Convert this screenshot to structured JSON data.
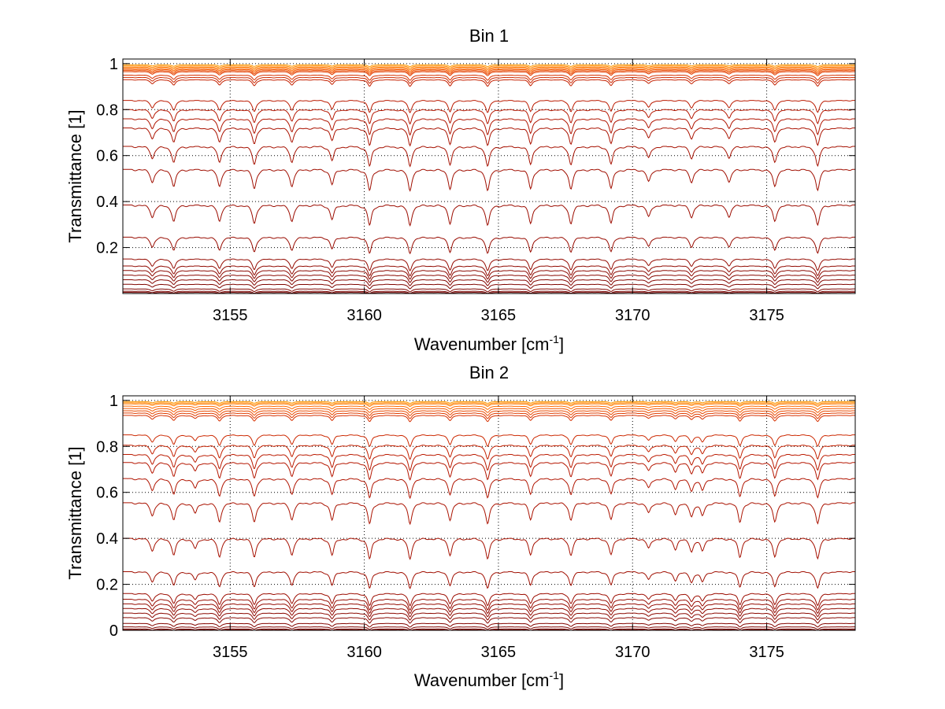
{
  "chart_data": [
    {
      "type": "line",
      "title": "Bin 1",
      "xlabel_main": "Wavenumber [cm",
      "xlabel_sup": "-1",
      "xlabel_end": "]",
      "ylabel": "Transmittance [1]",
      "xlim": [
        3151.0,
        3178.3
      ],
      "ylim": [
        0,
        1.02
      ],
      "xticks": [
        3155,
        3160,
        3165,
        3170,
        3175
      ],
      "xtick_labels": [
        "3155",
        "3160",
        "3165",
        "3170",
        "3175"
      ],
      "yticks": [
        0.2,
        0.4,
        0.6,
        0.8,
        1
      ],
      "ytick_labels": [
        "0.2",
        "0.4",
        "0.6",
        "0.8",
        "1"
      ],
      "grid": true,
      "line_centers": [
        3152.1,
        3152.9,
        3154.6,
        3155.9,
        3157.3,
        3158.8,
        3160.2,
        3161.7,
        3163.2,
        3164.6,
        3166.2,
        3167.7,
        3169.2,
        3170.6,
        3172.2,
        3173.6,
        3175.3,
        3176.9
      ],
      "line_depths": [
        0.6,
        0.8,
        0.8,
        0.9,
        0.8,
        0.7,
        1.0,
        1.0,
        0.9,
        1.0,
        0.9,
        0.9,
        0.9,
        0.6,
        0.6,
        0.6,
        0.8,
        1.0
      ],
      "series_baselines": [
        0.995,
        0.99,
        0.985,
        0.98,
        0.975,
        0.97,
        0.965,
        0.95,
        0.94,
        0.93,
        0.84,
        0.8,
        0.76,
        0.72,
        0.64,
        0.54,
        0.385,
        0.245,
        0.15,
        0.12,
        0.1,
        0.08,
        0.06,
        0.04,
        0.02,
        0.01,
        0.005
      ],
      "series_colors": [
        "#ff9900",
        "#ff8800",
        "#ff7a00",
        "#ff6a00",
        "#f55a00",
        "#ea4a00",
        "#e03c00",
        "#d63000",
        "#cc2800",
        "#c42000",
        "#bb1a00",
        "#b51600",
        "#b01400",
        "#aa1200",
        "#a51000",
        "#a00e00",
        "#9c0c00",
        "#980b00",
        "#940a00",
        "#900900",
        "#8c0800",
        "#880700",
        "#840600",
        "#800500",
        "#7c0400",
        "#780300",
        "#740200"
      ]
    },
    {
      "type": "line",
      "title": "Bin 2",
      "xlabel_main": "Wavenumber [cm",
      "xlabel_sup": "-1",
      "xlabel_end": "]",
      "ylabel": "Transmittance [1]",
      "xlim": [
        3151.0,
        3178.3
      ],
      "ylim": [
        0,
        1.02
      ],
      "xticks": [
        3155,
        3160,
        3165,
        3170,
        3175
      ],
      "xtick_labels": [
        "3155",
        "3160",
        "3165",
        "3170",
        "3175"
      ],
      "yticks": [
        0,
        0.2,
        0.4,
        0.6,
        0.8,
        1
      ],
      "ytick_labels": [
        "0",
        "0.2",
        "0.4",
        "0.6",
        "0.8",
        "1"
      ],
      "grid": true,
      "line_centers": [
        3152.1,
        3152.9,
        3153.7,
        3154.6,
        3155.9,
        3157.3,
        3158.8,
        3160.2,
        3161.7,
        3163.2,
        3164.6,
        3166.2,
        3167.7,
        3169.2,
        3170.6,
        3171.6,
        3172.2,
        3172.6,
        3174.0,
        3175.3,
        3176.9
      ],
      "line_depths": [
        0.6,
        0.8,
        0.5,
        0.9,
        0.9,
        0.8,
        0.8,
        1.0,
        1.0,
        0.8,
        1.0,
        0.8,
        0.8,
        0.8,
        0.5,
        0.5,
        0.6,
        0.6,
        0.9,
        0.9,
        1.0
      ],
      "series_baselines": [
        0.995,
        0.99,
        0.985,
        0.975,
        0.965,
        0.955,
        0.945,
        0.935,
        0.85,
        0.805,
        0.765,
        0.73,
        0.66,
        0.555,
        0.4,
        0.255,
        0.16,
        0.135,
        0.115,
        0.095,
        0.075,
        0.055,
        0.03,
        0.015,
        0.006,
        0.002
      ],
      "series_colors": [
        "#ff9900",
        "#ff8800",
        "#ff7a00",
        "#ff6a00",
        "#f55a00",
        "#ea4a00",
        "#e03c00",
        "#d63000",
        "#cc2800",
        "#c42000",
        "#bb1a00",
        "#b51600",
        "#b01400",
        "#aa1200",
        "#a51000",
        "#a00e00",
        "#9c0c00",
        "#980b00",
        "#940a00",
        "#900900",
        "#8c0800",
        "#880700",
        "#840600",
        "#800500",
        "#7c0400",
        "#780300"
      ]
    }
  ]
}
